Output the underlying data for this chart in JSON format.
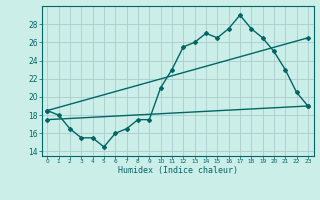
{
  "bg_color": "#cceee8",
  "grid_color": "#aacccc",
  "line_color": "#006666",
  "xlabel": "Humidex (Indice chaleur)",
  "ylim": [
    13.5,
    30
  ],
  "xlim": [
    -0.5,
    23.5
  ],
  "yticks": [
    14,
    16,
    18,
    20,
    22,
    24,
    26,
    28
  ],
  "xticks": [
    0,
    1,
    2,
    3,
    4,
    5,
    6,
    7,
    8,
    9,
    10,
    11,
    12,
    13,
    14,
    15,
    16,
    17,
    18,
    19,
    20,
    21,
    22,
    23
  ],
  "line1_x": [
    0,
    1,
    2,
    3,
    4,
    5,
    6,
    7,
    8,
    9,
    10,
    11,
    12,
    13,
    14,
    15,
    16,
    17,
    18,
    19,
    20,
    21,
    22,
    23
  ],
  "line1_y": [
    18.5,
    18.0,
    16.5,
    15.5,
    15.5,
    14.5,
    16.0,
    16.5,
    17.5,
    17.5,
    21.0,
    23.0,
    25.5,
    26.0,
    27.0,
    26.5,
    27.5,
    29.0,
    27.5,
    26.5,
    25.0,
    23.0,
    20.5,
    19.0
  ],
  "line2_x": [
    0,
    23
  ],
  "line2_y": [
    18.5,
    26.5
  ],
  "line3_x": [
    0,
    23
  ],
  "line3_y": [
    17.5,
    19.0
  ],
  "marker": "D",
  "markersize": 2.0,
  "linewidth": 1.0
}
